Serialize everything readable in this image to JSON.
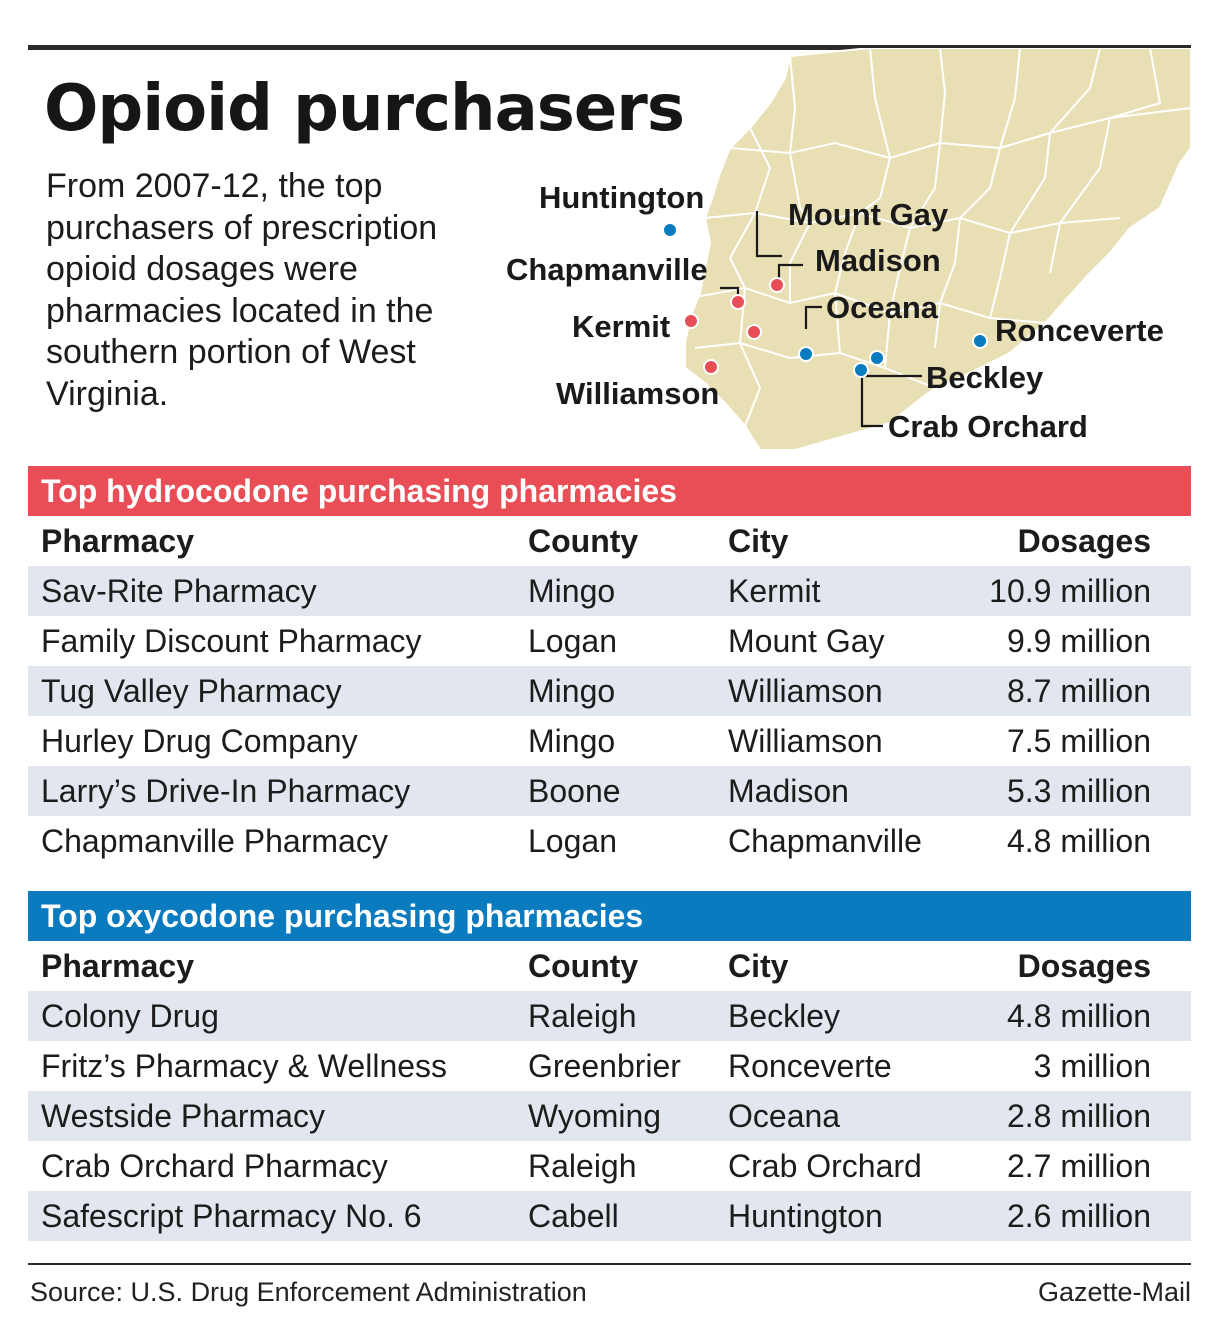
{
  "title": "Opioid purchasers",
  "intro": "From 2007-12, the top purchasers of prescription opioid dosages were pharmacies located in the southern portion of West Virginia.",
  "map": {
    "land_color": "#e9dfb4",
    "border_color": "#ffffff",
    "hydrocodone_dot_color": "#e94e57",
    "oxycodone_dot_color": "#0a7bbf",
    "labels": {
      "huntington": "Huntington",
      "mount_gay": "Mount Gay",
      "madison": "Madison",
      "chapmanville": "Chapmanville",
      "oceana": "Oceana",
      "kermit": "Kermit",
      "ronceverte": "Ronceverte",
      "beckley": "Beckley",
      "williamson": "Williamson",
      "crab_orchard": "Crab Orchard"
    }
  },
  "hydrocodone": {
    "heading": "Top hydrocodone purchasing pharmacies",
    "columns": [
      "Pharmacy",
      "County",
      "City",
      "Dosages"
    ],
    "rows": [
      [
        "Sav-Rite Pharmacy",
        "Mingo",
        "Kermit",
        "10.9 million"
      ],
      [
        "Family Discount Pharmacy",
        "Logan",
        "Mount Gay",
        "9.9 million"
      ],
      [
        "Tug Valley Pharmacy",
        "Mingo",
        "Williamson",
        "8.7 million"
      ],
      [
        "Hurley Drug Company",
        "Mingo",
        "Williamson",
        "7.5 million"
      ],
      [
        "Larry’s Drive-In Pharmacy",
        "Boone",
        "Madison",
        "5.3 million"
      ],
      [
        "Chapmanville Pharmacy",
        "Logan",
        "Chapmanville",
        "4.8 million"
      ]
    ]
  },
  "oxycodone": {
    "heading": "Top oxycodone purchasing pharmacies",
    "columns": [
      "Pharmacy",
      "County",
      "City",
      "Dosages"
    ],
    "rows": [
      [
        "Colony Drug",
        "Raleigh",
        "Beckley",
        "4.8 million"
      ],
      [
        "Fritz’s Pharmacy & Wellness",
        "Greenbrier",
        "Ronceverte",
        "3 million"
      ],
      [
        "Westside Pharmacy",
        "Wyoming",
        "Oceana",
        "2.8 million"
      ],
      [
        "Crab Orchard Pharmacy",
        "Raleigh",
        "Crab Orchard",
        "2.7 million"
      ],
      [
        "Safescript Pharmacy No. 6",
        "Cabell",
        "Huntington",
        "2.6 million"
      ]
    ]
  },
  "footer": {
    "source": "Source: U.S. Drug Enforcement Administration",
    "credit": "Gazette-Mail"
  }
}
